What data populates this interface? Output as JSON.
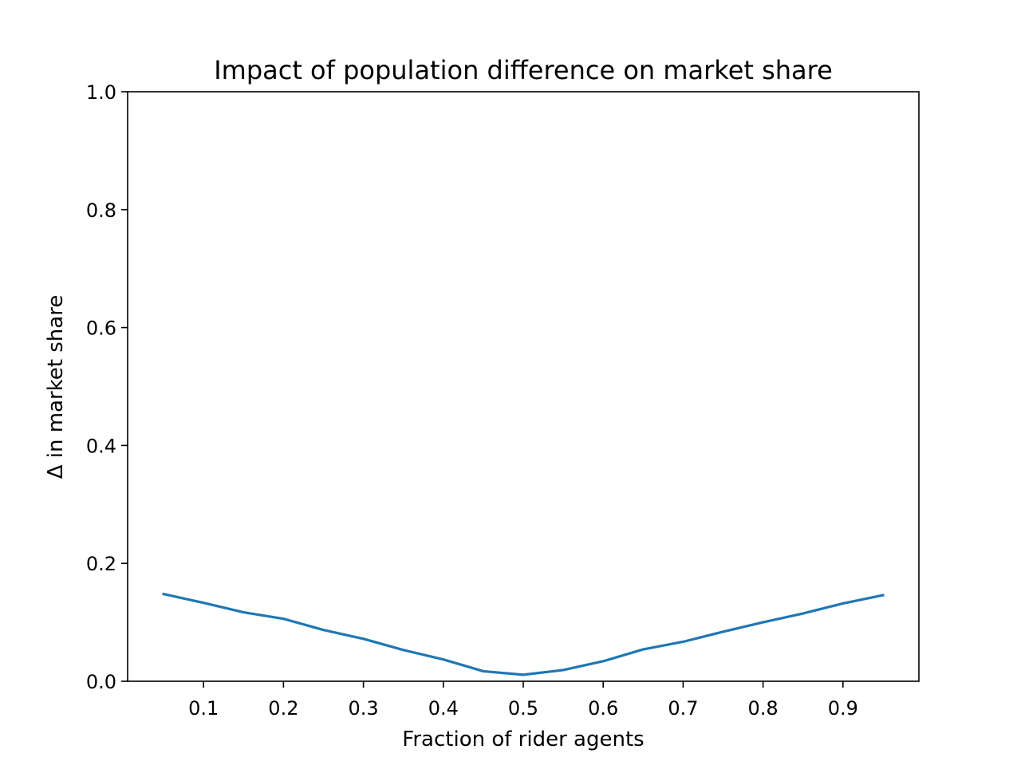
{
  "chart_data": {
    "type": "line",
    "title": "Impact of population difference on market share",
    "xlabel": "Fraction of rider agents",
    "ylabel": "Δ in market share",
    "xlim": [
      0.005,
      0.995
    ],
    "ylim": [
      0.0,
      1.0
    ],
    "xticks": [
      0.1,
      0.2,
      0.3,
      0.4,
      0.5,
      0.6,
      0.7,
      0.8,
      0.9
    ],
    "xtick_labels": [
      "0.1",
      "0.2",
      "0.3",
      "0.4",
      "0.5",
      "0.6",
      "0.7",
      "0.8",
      "0.9"
    ],
    "yticks": [
      0.0,
      0.2,
      0.4,
      0.6,
      0.8,
      1.0
    ],
    "ytick_labels": [
      "0.0",
      "0.2",
      "0.4",
      "0.6",
      "0.8",
      "1.0"
    ],
    "grid": false,
    "series": [
      {
        "color": "#1f77b4",
        "x": [
          0.05,
          0.1,
          0.15,
          0.2,
          0.25,
          0.3,
          0.35,
          0.4,
          0.45,
          0.5,
          0.55,
          0.6,
          0.65,
          0.7,
          0.75,
          0.8,
          0.85,
          0.9,
          0.95
        ],
        "y": [
          0.148,
          0.133,
          0.117,
          0.106,
          0.087,
          0.072,
          0.053,
          0.037,
          0.017,
          0.011,
          0.019,
          0.034,
          0.054,
          0.067,
          0.084,
          0.1,
          0.115,
          0.132,
          0.146
        ]
      }
    ]
  }
}
